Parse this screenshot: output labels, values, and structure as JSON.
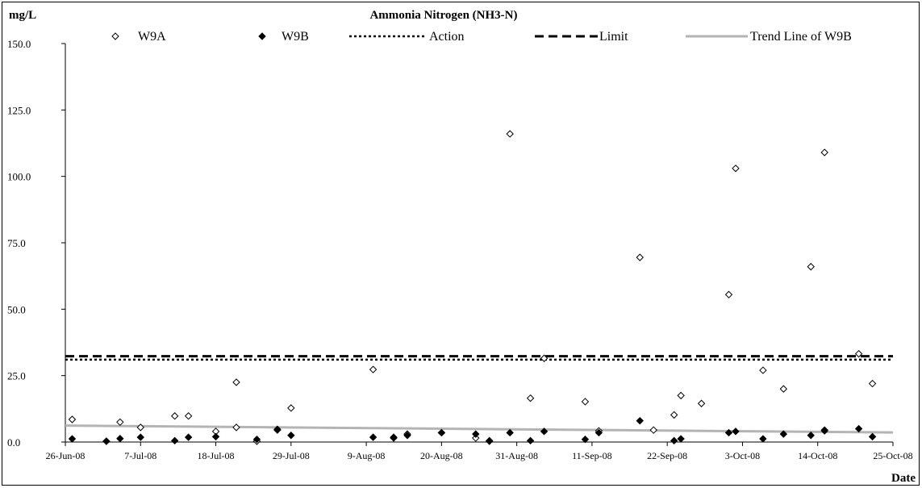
{
  "chart_data": {
    "type": "scatter",
    "title": "Ammonia Nitrogen (NH3-N)",
    "ylabel": "mg/L",
    "xlabel": "Date",
    "ylim": [
      0,
      150
    ],
    "yticks": [
      "0.0",
      "25.0",
      "50.0",
      "75.0",
      "100.0",
      "125.0",
      "150.0"
    ],
    "xlim": [
      "2008-06-26",
      "2008-10-25"
    ],
    "xticks": [
      {
        "date": "2008-06-26",
        "label": "26-Jun-08"
      },
      {
        "date": "2008-07-07",
        "label": "7-Jul-08"
      },
      {
        "date": "2008-07-18",
        "label": "18-Jul-08"
      },
      {
        "date": "2008-07-29",
        "label": "29-Jul-08"
      },
      {
        "date": "2008-08-09",
        "label": "9-Aug-08"
      },
      {
        "date": "2008-08-20",
        "label": "20-Aug-08"
      },
      {
        "date": "2008-08-31",
        "label": "31-Aug-08"
      },
      {
        "date": "2008-09-11",
        "label": "11-Sep-08"
      },
      {
        "date": "2008-09-22",
        "label": "22-Sep-08"
      },
      {
        "date": "2008-10-03",
        "label": "3-Oct-08"
      },
      {
        "date": "2008-10-14",
        "label": "14-Oct-08"
      },
      {
        "date": "2008-10-25",
        "label": "25-Oct-08"
      }
    ],
    "grid": false,
    "legend_position": "top",
    "series": [
      {
        "name": "W9A",
        "marker": "open-diamond",
        "color": "#000000",
        "points": [
          [
            "2008-06-27",
            8.5
          ],
          [
            "2008-07-02",
            0.3
          ],
          [
            "2008-07-04",
            7.5
          ],
          [
            "2008-07-07",
            5.5
          ],
          [
            "2008-07-12",
            9.8
          ],
          [
            "2008-07-14",
            9.8
          ],
          [
            "2008-07-18",
            4.0
          ],
          [
            "2008-07-21",
            22.5
          ],
          [
            "2008-07-21",
            5.5
          ],
          [
            "2008-07-24",
            0.3
          ],
          [
            "2008-07-27",
            4.8
          ],
          [
            "2008-07-29",
            12.8
          ],
          [
            "2008-08-10",
            27.3
          ],
          [
            "2008-08-13",
            1.5
          ],
          [
            "2008-08-15",
            3.0
          ],
          [
            "2008-08-20",
            3.5
          ],
          [
            "2008-08-25",
            1.5
          ],
          [
            "2008-08-27",
            0.3
          ],
          [
            "2008-08-30",
            116.0
          ],
          [
            "2008-09-02",
            16.5
          ],
          [
            "2008-09-04",
            31.5
          ],
          [
            "2008-09-10",
            15.2
          ],
          [
            "2008-09-12",
            4.2
          ],
          [
            "2008-09-18",
            69.5
          ],
          [
            "2008-09-20",
            4.5
          ],
          [
            "2008-09-23",
            10.2
          ],
          [
            "2008-09-24",
            17.5
          ],
          [
            "2008-09-27",
            14.5
          ],
          [
            "2008-10-01",
            55.5
          ],
          [
            "2008-10-02",
            103.0
          ],
          [
            "2008-10-06",
            27.0
          ],
          [
            "2008-10-09",
            20.0
          ],
          [
            "2008-10-13",
            66.0
          ],
          [
            "2008-10-15",
            109.0
          ],
          [
            "2008-10-15",
            4.5
          ],
          [
            "2008-10-20",
            33.2
          ],
          [
            "2008-10-22",
            22.0
          ]
        ]
      },
      {
        "name": "W9B",
        "marker": "filled-diamond",
        "color": "#000000",
        "points": [
          [
            "2008-06-27",
            1.2
          ],
          [
            "2008-07-02",
            0.3
          ],
          [
            "2008-07-04",
            1.3
          ],
          [
            "2008-07-07",
            1.8
          ],
          [
            "2008-07-12",
            0.5
          ],
          [
            "2008-07-14",
            1.8
          ],
          [
            "2008-07-18",
            2.0
          ],
          [
            "2008-07-24",
            1.0
          ],
          [
            "2008-07-27",
            4.5
          ],
          [
            "2008-07-29",
            2.5
          ],
          [
            "2008-08-10",
            1.8
          ],
          [
            "2008-08-13",
            1.8
          ],
          [
            "2008-08-15",
            2.5
          ],
          [
            "2008-08-20",
            3.5
          ],
          [
            "2008-08-25",
            3.0
          ],
          [
            "2008-08-27",
            0.5
          ],
          [
            "2008-08-30",
            3.5
          ],
          [
            "2008-09-02",
            0.5
          ],
          [
            "2008-09-04",
            4.0
          ],
          [
            "2008-09-10",
            1.0
          ],
          [
            "2008-09-12",
            3.5
          ],
          [
            "2008-09-18",
            8.0
          ],
          [
            "2008-09-23",
            0.5
          ],
          [
            "2008-09-24",
            1.2
          ],
          [
            "2008-10-01",
            3.5
          ],
          [
            "2008-10-02",
            4.0
          ],
          [
            "2008-10-06",
            1.2
          ],
          [
            "2008-10-09",
            3.0
          ],
          [
            "2008-10-13",
            2.5
          ],
          [
            "2008-10-15",
            4.2
          ],
          [
            "2008-10-20",
            5.0
          ],
          [
            "2008-10-22",
            2.0
          ]
        ]
      },
      {
        "name": "Action",
        "style": "dotted",
        "color": "#000000",
        "y": 31
      },
      {
        "name": "Limit",
        "style": "dashed",
        "color": "#000000",
        "y": 32.3
      },
      {
        "name": "Trend Line of W9B",
        "style": "solid",
        "color": "#b4b4b4",
        "points": [
          [
            "2008-06-26",
            6.2
          ],
          [
            "2008-10-25",
            3.6
          ]
        ]
      }
    ]
  }
}
